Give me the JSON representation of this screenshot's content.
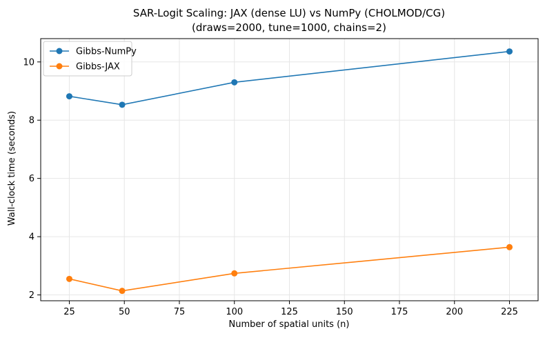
{
  "chart_data": {
    "type": "line",
    "title": "SAR-Logit Scaling: JAX (dense LU) vs NumPy (CHOLMOD/CG)",
    "subtitle": "(draws=2000, tune=1000, chains=2)",
    "xlabel": "Number of spatial units (n)",
    "ylabel": "Wall-clock time (seconds)",
    "x": [
      25,
      49,
      100,
      225
    ],
    "xlim": [
      12,
      238
    ],
    "ylim": [
      1.8,
      10.8
    ],
    "xticks": [
      25,
      50,
      75,
      100,
      125,
      150,
      175,
      200,
      225
    ],
    "yticks": [
      2,
      4,
      6,
      8,
      10
    ],
    "grid": true,
    "legend_position": "top-left",
    "series": [
      {
        "name": "Gibbs-NumPy",
        "color": "#1f77b4",
        "values": [
          8.82,
          8.53,
          9.3,
          10.36
        ]
      },
      {
        "name": "Gibbs-JAX",
        "color": "#ff7f0e",
        "values": [
          2.55,
          2.14,
          2.74,
          3.64
        ]
      }
    ]
  }
}
